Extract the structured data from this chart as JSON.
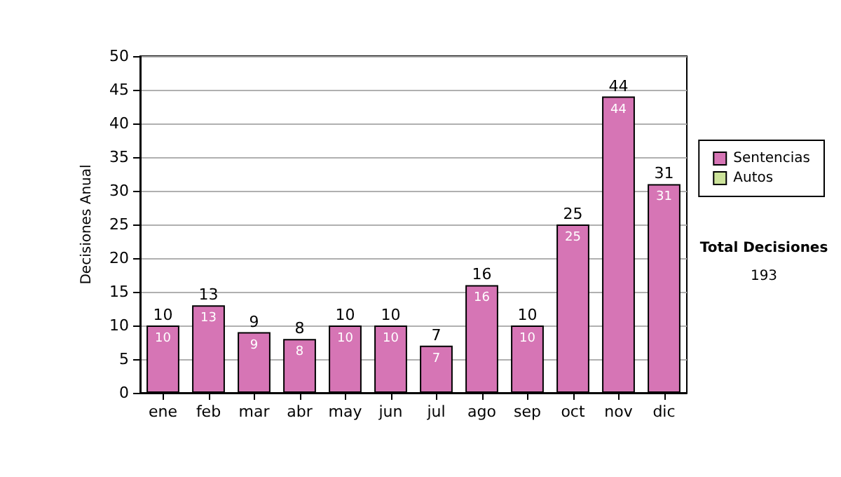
{
  "chart_data": {
    "type": "bar",
    "stacked": true,
    "ylabel": "Decisiones Anual",
    "categories": [
      "ene",
      "feb",
      "mar",
      "abr",
      "may",
      "jun",
      "jul",
      "ago",
      "sep",
      "oct",
      "nov",
      "dic"
    ],
    "series": [
      {
        "name": "Sentencias",
        "color": "#d675b5",
        "values": [
          10,
          13,
          9,
          8,
          10,
          10,
          7,
          16,
          10,
          25,
          44,
          31
        ]
      },
      {
        "name": "Autos",
        "color": "#cce39a",
        "values": [
          null,
          null,
          null,
          null,
          null,
          null,
          null,
          null,
          null,
          null,
          null,
          null
        ]
      }
    ],
    "totals": [
      "10",
      "13",
      "9",
      "8",
      "10",
      "10",
      "7",
      "16",
      "10",
      "25",
      "44",
      "31"
    ],
    "data_labels": true,
    "ylim": [
      0,
      50
    ],
    "yticks": [
      0,
      5,
      10,
      15,
      20,
      25,
      30,
      35,
      40,
      45,
      50
    ],
    "grid": "y",
    "legend": "right",
    "annotations": [
      "Total Decisiones",
      "193"
    ]
  }
}
